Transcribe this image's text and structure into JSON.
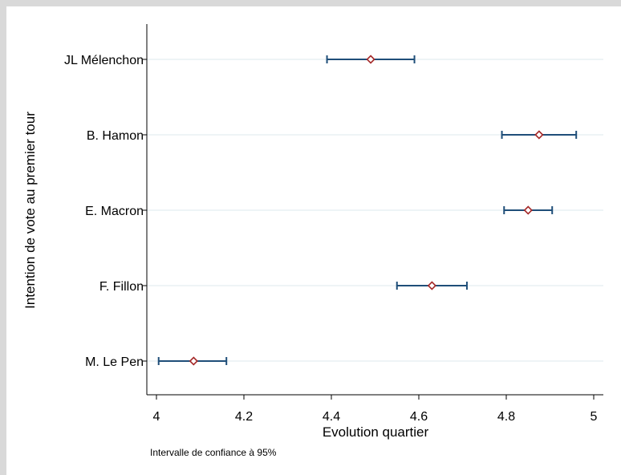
{
  "chart_data": {
    "type": "scatter",
    "subtype": "coefficient-plot-with-confidence-intervals",
    "xlabel": "Evolution quartier",
    "ylabel": "Intention de vote au premier tour",
    "note": "Intervalle de confiance à 95%",
    "xlim": [
      3.98,
      5.02
    ],
    "xticks": [
      4,
      4.2,
      4.4,
      4.6,
      4.8,
      5
    ],
    "grid": "horizontal",
    "colors": {
      "ci_line": "#1f4e79",
      "marker_edge": "#a52a2a",
      "grid": "#dde8ee"
    },
    "points": [
      {
        "label": "JL Mélenchon",
        "estimate": 4.49,
        "ci_low": 4.39,
        "ci_high": 4.59
      },
      {
        "label": "B. Hamon",
        "estimate": 4.875,
        "ci_low": 4.79,
        "ci_high": 4.96
      },
      {
        "label": "E. Macron",
        "estimate": 4.85,
        "ci_low": 4.795,
        "ci_high": 4.905
      },
      {
        "label": "F. Fillon",
        "estimate": 4.63,
        "ci_low": 4.55,
        "ci_high": 4.71
      },
      {
        "label": "M. Le Pen",
        "estimate": 4.085,
        "ci_low": 4.005,
        "ci_high": 4.16
      }
    ]
  }
}
